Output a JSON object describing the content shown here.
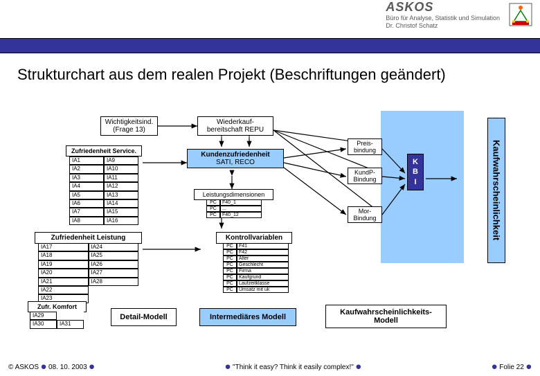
{
  "header": {
    "company": "ASKOS",
    "subtitle1": "Büro für Analyse, Statistik und Simulation",
    "subtitle2": "Dr. Christof Schatz"
  },
  "title": "Strukturchart aus dem realen Projekt (Beschriftungen geändert)",
  "boxes": {
    "wichtigkeit": {
      "line1": "Wichtigkeitsind.",
      "line2": "(Frage 13)"
    },
    "wiederkauf": {
      "line1": "Wiederkauf-",
      "line2": "bereitschaft REPU"
    },
    "zufService": "Zufriedenheit Service.",
    "kundenzuf": {
      "line1": "Kundenzufriedenheit",
      "line2": "SATI, RECO"
    },
    "leistungsdim": "Leistungsdimensionen",
    "zufLeistung": "Zufriedenheit Leistung",
    "kontroll": "Kontrollvariablen",
    "zufKomfort": "Zufr. Komfort",
    "detail": "Detail-Modell",
    "intermed": "Intermediäres Modell",
    "kaufwahr": {
      "line1": "Kaufwahrscheinlichkeits-",
      "line2": "Modell"
    },
    "preisbindung": {
      "line1": "Preis-",
      "line2": "bindung"
    },
    "kundpbindung": {
      "line1": "KundP-",
      "line2": "Bindung"
    },
    "morbindung": {
      "line1": "Mor-",
      "line2": "Bindung"
    },
    "kbi": "K\nB\nI",
    "vertical": "Kaufwahrscheinlichkeit"
  },
  "serviceItems": [
    [
      "IA1",
      "IA9"
    ],
    [
      "IA2",
      "IA10"
    ],
    [
      "IA3",
      "IA11"
    ],
    [
      "IA4",
      "IA12"
    ],
    [
      "IA5",
      "IA13"
    ],
    [
      "IA6",
      "IA14"
    ],
    [
      "IA7",
      "IA15"
    ],
    [
      "IA8",
      "IA16"
    ]
  ],
  "leistungItems": [
    [
      "IA17",
      "IA24"
    ],
    [
      "IA18",
      "IA25"
    ],
    [
      "IA19",
      "IA26"
    ],
    [
      "IA20",
      "IA27"
    ],
    [
      "IA21",
      "IA28"
    ],
    [
      "IA22",
      ""
    ],
    [
      "IA23",
      ""
    ]
  ],
  "komfortItems": [
    [
      "IA29",
      ""
    ],
    [
      "IA30",
      "IA31"
    ]
  ],
  "leistRows": [
    [
      "PC",
      "F40_1"
    ],
    [
      "PC",
      "..."
    ],
    [
      "PC",
      "F40_12"
    ]
  ],
  "kontrollRows": [
    [
      "PC",
      "F41"
    ],
    [
      "PC",
      "F42"
    ],
    [
      "PC",
      "Alter"
    ],
    [
      "PC",
      "Geschlecht"
    ],
    [
      "PC",
      "Firma"
    ],
    [
      "PC",
      "Kaufgrund"
    ],
    [
      "PC",
      "Laufzeitklasse"
    ],
    [
      "PC",
      "Umsatz mit uk"
    ]
  ],
  "footer": {
    "left": "© ASKOS",
    "date": "08. 10. 2003",
    "center": "\"Think it easy? Think it easily complex!\"",
    "right": "Folie 22"
  },
  "colors": {
    "accent": "#333399",
    "highlight": "#99ccff",
    "border": "#000000",
    "bg": "#ffffff"
  }
}
